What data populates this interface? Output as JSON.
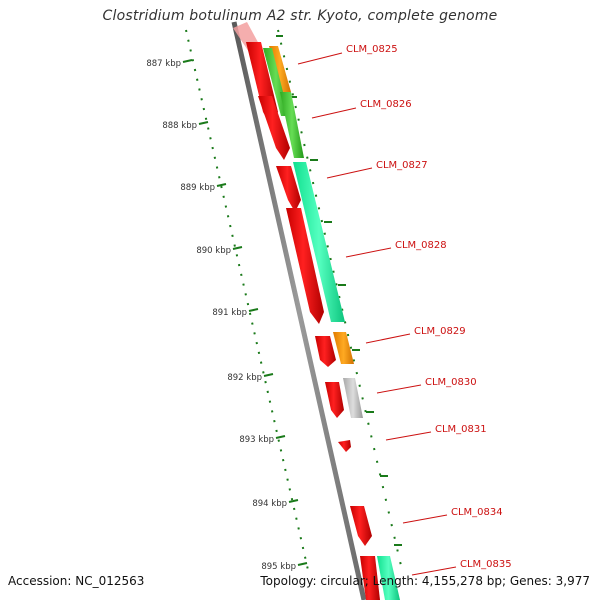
{
  "title": "Clostridium botulinum A2 str. Kyoto, complete genome",
  "footer": {
    "accession": "Accession: NC_012563",
    "summary": "Topology: circular; Length: 4,155,278 bp; Genes: 3,977"
  },
  "kbp_ticks": [
    "887 kbp",
    "888 kbp",
    "889 kbp",
    "890 kbp",
    "891 kbp",
    "892 kbp",
    "893 kbp",
    "894 kbp",
    "895 kbp"
  ],
  "gene_labels": [
    "CLM_0825",
    "CLM_0826",
    "CLM_0827",
    "CLM_0828",
    "CLM_0829",
    "CLM_0830",
    "CLM_0831",
    "CLM_0834",
    "CLM_0835"
  ],
  "colors": {
    "cds_forward": "#ee1111",
    "gene_orange": "#ff9900",
    "gene_green": "#44cc33",
    "gene_teal": "#22ffaa",
    "gene_grey": "#bbbbbb",
    "backbone": "#808080",
    "tick_green": "#1a7a1a",
    "label_red": "#cc1111"
  }
}
